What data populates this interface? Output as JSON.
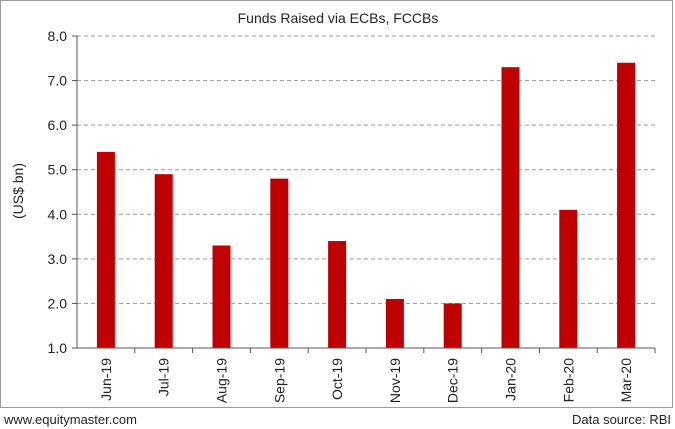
{
  "chart_data": {
    "type": "bar",
    "title": "Funds Raised via ECBs, FCCBs",
    "ylabel": "(US$ bn)",
    "xlabel": "",
    "categories": [
      "Jun-19",
      "Jul-19",
      "Aug-19",
      "Sep-19",
      "Oct-19",
      "Nov-19",
      "Dec-19",
      "Jan-20",
      "Feb-20",
      "Mar-20"
    ],
    "values": [
      5.4,
      4.9,
      3.3,
      4.8,
      3.4,
      2.1,
      2.0,
      7.3,
      4.1,
      7.4
    ],
    "ylim": [
      1.0,
      8.0
    ],
    "yticks": [
      "1.0",
      "2.0",
      "3.0",
      "4.0",
      "5.0",
      "6.0",
      "7.0",
      "8.0"
    ],
    "grid": true,
    "bar_color": "#c00000"
  },
  "footer": {
    "website": "www.equitymaster.com",
    "source": "Data source: RBI"
  }
}
